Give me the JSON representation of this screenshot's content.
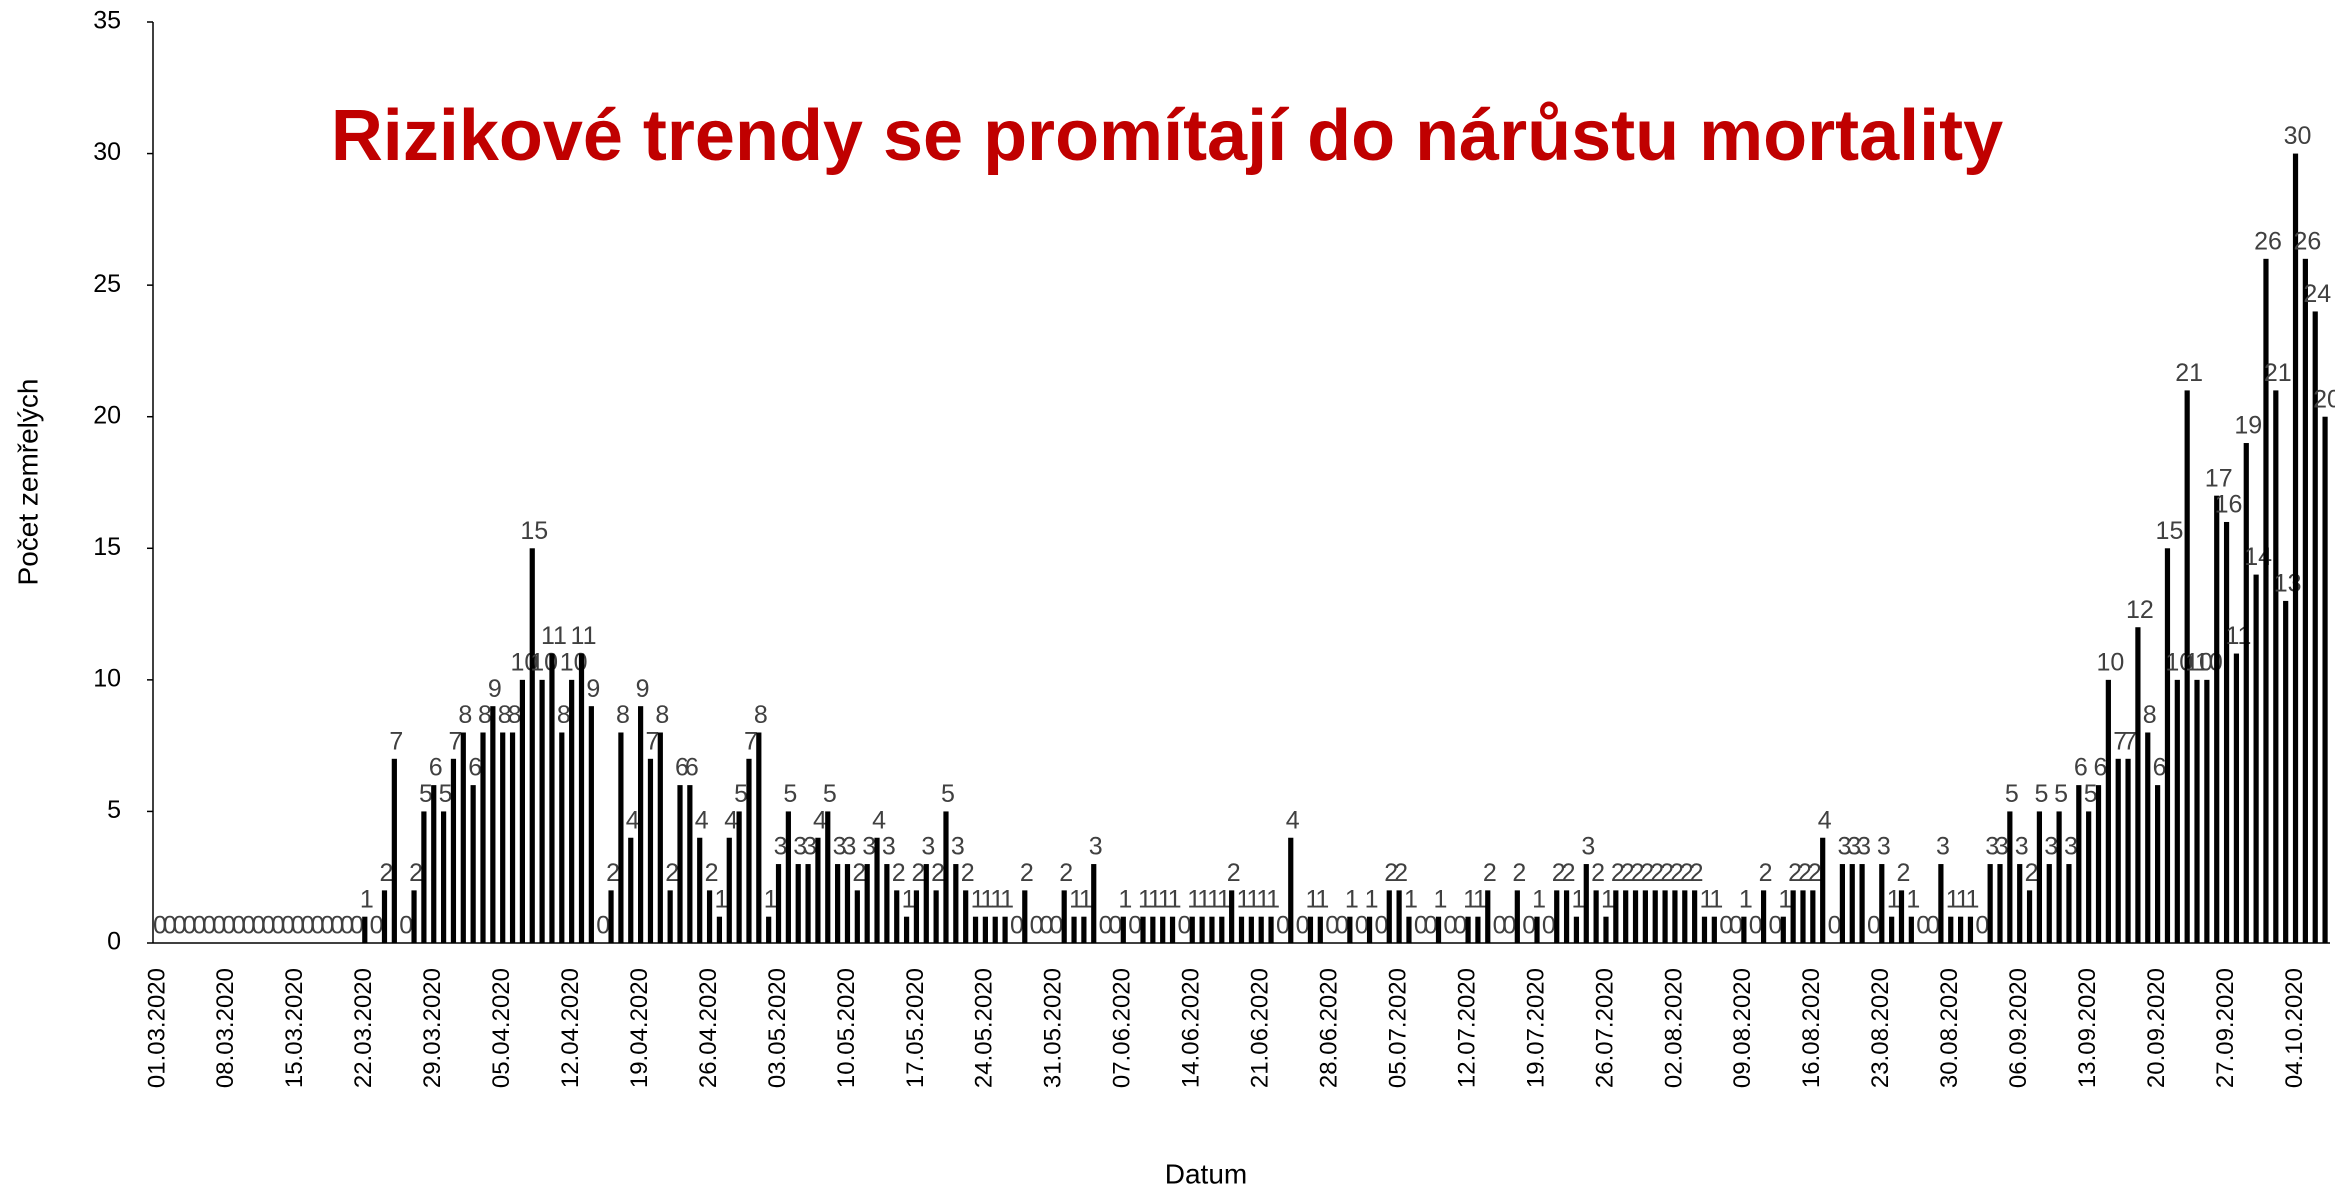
{
  "chart_data": {
    "type": "bar",
    "title": "Rizikové trendy se promítají do nárůstu mortality",
    "xlabel": "Datum",
    "ylabel": "Počet zemřelých",
    "color": "#000000",
    "title_color": "#c00000",
    "categories": [
      "01.03.2020",
      null,
      null,
      null,
      null,
      null,
      null,
      "08.03.2020",
      null,
      null,
      null,
      null,
      null,
      null,
      "15.03.2020",
      null,
      null,
      null,
      null,
      null,
      null,
      "22.03.2020",
      null,
      null,
      null,
      null,
      null,
      null,
      "29.03.2020",
      null,
      null,
      null,
      null,
      null,
      null,
      "05.04.2020",
      null,
      null,
      null,
      null,
      null,
      null,
      "12.04.2020",
      null,
      null,
      null,
      null,
      null,
      null,
      "19.04.2020",
      null,
      null,
      null,
      null,
      null,
      null,
      "26.04.2020",
      null,
      null,
      null,
      null,
      null,
      null,
      "03.05.2020",
      null,
      null,
      null,
      null,
      null,
      null,
      "10.05.2020",
      null,
      null,
      null,
      null,
      null,
      null,
      "17.05.2020",
      null,
      null,
      null,
      null,
      null,
      null,
      "24.05.2020",
      null,
      null,
      null,
      null,
      null,
      null,
      "31.05.2020",
      null,
      null,
      null,
      null,
      null,
      null,
      "07.06.2020",
      null,
      null,
      null,
      null,
      null,
      null,
      "14.06.2020",
      null,
      null,
      null,
      null,
      null,
      null,
      "21.06.2020",
      null,
      null,
      null,
      null,
      null,
      null,
      "28.06.2020",
      null,
      null,
      null,
      null,
      null,
      null,
      "05.07.2020",
      null,
      null,
      null,
      null,
      null,
      null,
      "12.07.2020",
      null,
      null,
      null,
      null,
      null,
      null,
      "19.07.2020",
      null,
      null,
      null,
      null,
      null,
      null,
      "26.07.2020",
      null,
      null,
      null,
      null,
      null,
      null,
      "02.08.2020",
      null,
      null,
      null,
      null,
      null,
      null,
      "09.08.2020",
      null,
      null,
      null,
      null,
      null,
      null,
      "16.08.2020",
      null,
      null,
      null,
      null,
      null,
      null,
      "23.08.2020",
      null,
      null,
      null,
      null,
      null,
      null,
      "30.08.2020",
      null,
      null,
      null,
      null,
      null,
      null,
      "06.09.2020",
      null,
      null,
      null,
      null,
      null,
      null,
      "13.09.2020",
      null,
      null,
      null,
      null,
      null,
      null,
      "20.09.2020",
      null,
      null,
      null,
      null,
      null,
      null,
      "27.09.2020",
      null,
      null,
      null,
      null,
      null,
      null,
      "04.10.2020",
      null,
      null,
      null
    ],
    "values": [
      0,
      0,
      0,
      0,
      0,
      0,
      0,
      0,
      0,
      0,
      0,
      0,
      0,
      0,
      0,
      0,
      0,
      0,
      0,
      0,
      0,
      1,
      0,
      2,
      7,
      0,
      2,
      5,
      6,
      5,
      7,
      8,
      6,
      8,
      9,
      8,
      8,
      10,
      15,
      10,
      11,
      8,
      10,
      11,
      9,
      0,
      2,
      8,
      4,
      9,
      7,
      8,
      2,
      6,
      6,
      4,
      2,
      1,
      4,
      5,
      7,
      8,
      1,
      3,
      5,
      3,
      3,
      4,
      5,
      3,
      3,
      2,
      3,
      4,
      3,
      2,
      1,
      2,
      3,
      2,
      5,
      3,
      2,
      1,
      1,
      1,
      1,
      0,
      2,
      0,
      0,
      0,
      2,
      1,
      1,
      3,
      0,
      0,
      1,
      0,
      1,
      1,
      1,
      1,
      0,
      1,
      1,
      1,
      1,
      2,
      1,
      1,
      1,
      1,
      0,
      4,
      0,
      1,
      1,
      0,
      0,
      1,
      0,
      1,
      0,
      2,
      2,
      1,
      0,
      0,
      1,
      0,
      0,
      1,
      1,
      2,
      0,
      0,
      2,
      0,
      1,
      0,
      2,
      2,
      1,
      3,
      2,
      1,
      2,
      2,
      2,
      2,
      2,
      2,
      2,
      2,
      2,
      1,
      1,
      0,
      0,
      1,
      0,
      2,
      0,
      1,
      2,
      2,
      2,
      4,
      0,
      3,
      3,
      3,
      0,
      3,
      1,
      2,
      1,
      0,
      0,
      3,
      1,
      1,
      1,
      0,
      3,
      3,
      5,
      3,
      2,
      5,
      3,
      5,
      3,
      6,
      5,
      6,
      10,
      7,
      7,
      12,
      8,
      6,
      15,
      10,
      21,
      10,
      10,
      17,
      16,
      11,
      19,
      14,
      26,
      21,
      13,
      30,
      26,
      24,
      20
    ],
    "ylim": [
      0,
      35
    ],
    "yticks": [
      0,
      5,
      10,
      15,
      20,
      25,
      30,
      35
    ],
    "grid": false
  }
}
